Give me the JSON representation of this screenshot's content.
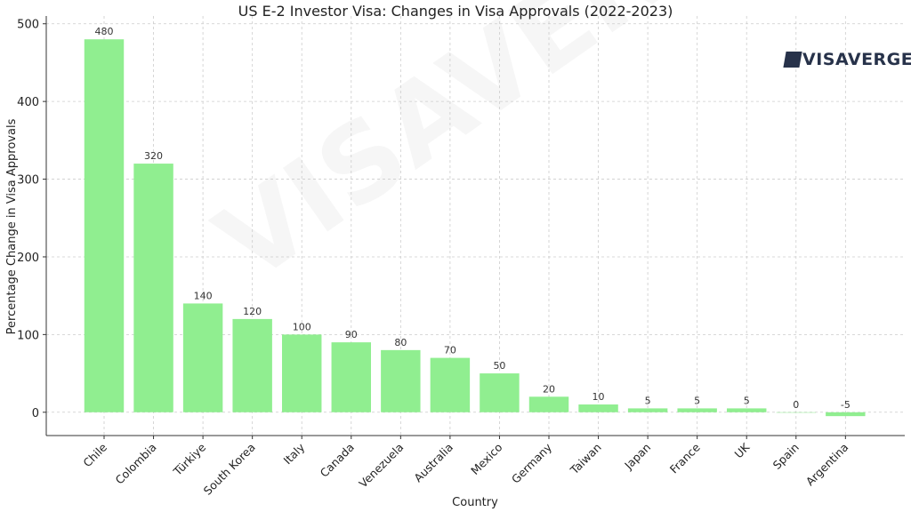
{
  "chart_data": {
    "type": "bar",
    "title": "US E-2 Investor Visa: Changes in Visa Approvals (2022-2023)",
    "xlabel": "Country",
    "ylabel": "Percentage Change in Visa Approvals",
    "categories": [
      "Chile",
      "Colombia",
      "Türkiye",
      "South Korea",
      "Italy",
      "Canada",
      "Venezuela",
      "Australia",
      "Mexico",
      "Germany",
      "Taiwan",
      "Japan",
      "France",
      "UK",
      "Spain",
      "Argentina"
    ],
    "values": [
      480,
      320,
      140,
      120,
      100,
      90,
      80,
      70,
      50,
      20,
      10,
      5,
      5,
      5,
      0,
      -5
    ],
    "yticks": [
      0,
      100,
      200,
      300,
      400,
      500
    ],
    "ylim": [
      -30,
      510
    ],
    "grid": true,
    "bar_color": "#90ee90"
  },
  "logo": {
    "text": "VISAVERGE"
  },
  "watermark": {
    "text": "VISAVERGE"
  }
}
